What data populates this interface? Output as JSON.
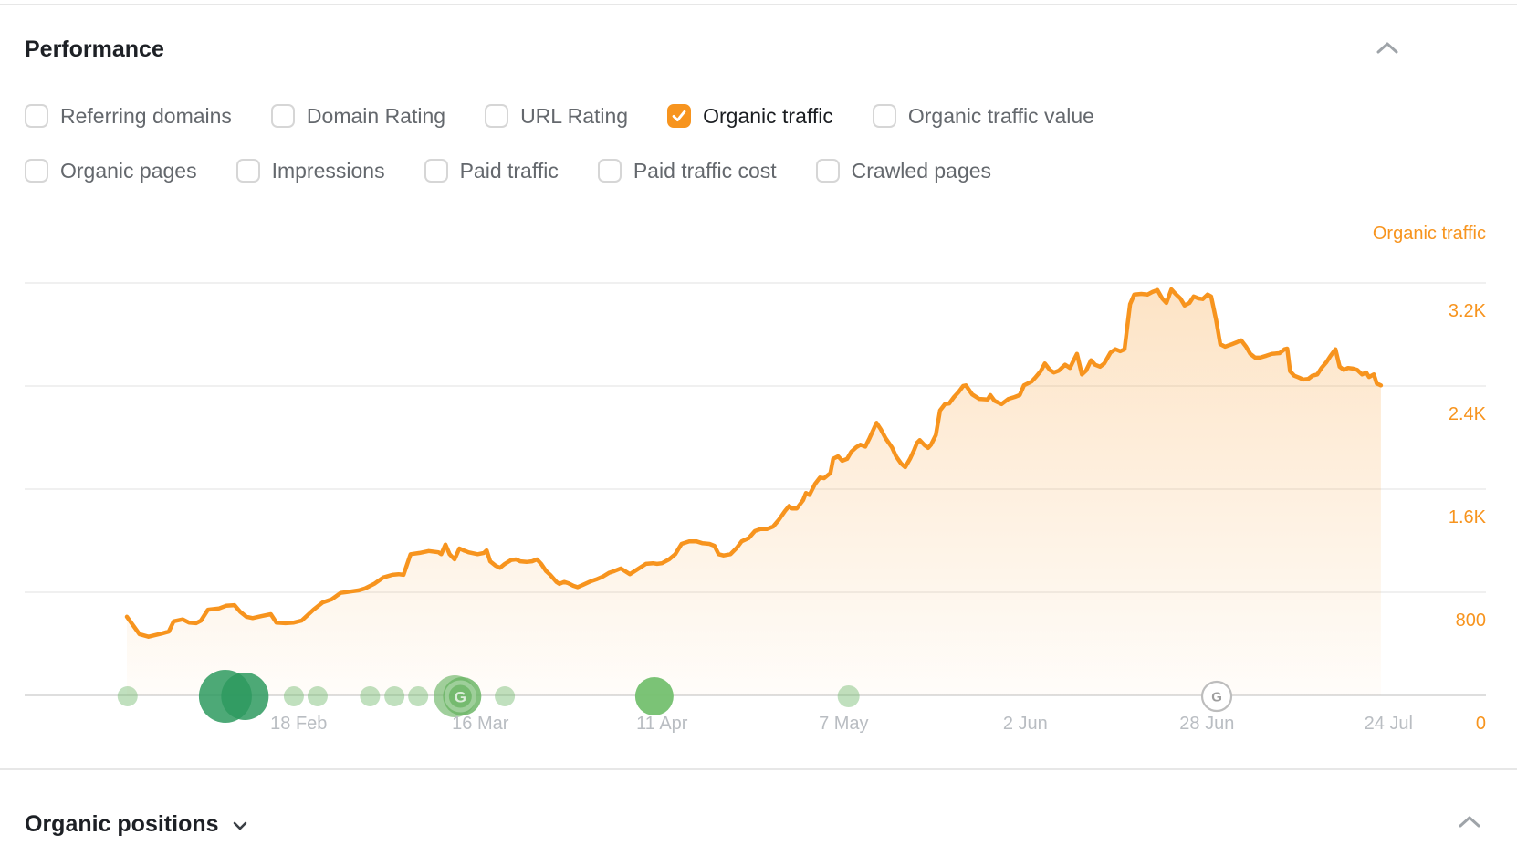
{
  "header": {
    "title": "Performance",
    "collapse_icon": "chevron-up"
  },
  "metric_toggles": {
    "row1": [
      {
        "label": "Referring domains",
        "checked": false
      },
      {
        "label": "Domain Rating",
        "checked": false
      },
      {
        "label": "URL Rating",
        "checked": false
      },
      {
        "label": "Organic traffic",
        "checked": true
      },
      {
        "label": "Organic traffic value",
        "checked": false
      }
    ],
    "row2": [
      {
        "label": "Organic pages",
        "checked": false
      },
      {
        "label": "Impressions",
        "checked": false
      },
      {
        "label": "Paid traffic",
        "checked": false
      },
      {
        "label": "Paid traffic cost",
        "checked": false
      },
      {
        "label": "Crawled pages",
        "checked": false
      }
    ]
  },
  "chart_data": {
    "type": "area",
    "title": "Organic traffic",
    "legend_position": "top-right",
    "grid": true,
    "ylim": [
      0,
      3600
    ],
    "y_ticks": [
      {
        "value": 3200,
        "label": "3.2K"
      },
      {
        "value": 2400,
        "label": "2.4K"
      },
      {
        "value": 1600,
        "label": "1.6K"
      },
      {
        "value": 800,
        "label": "800"
      },
      {
        "value": 0,
        "label": "0"
      }
    ],
    "x_ticks": [
      {
        "day": 24.6,
        "label": "18 Feb"
      },
      {
        "day": 50.6,
        "label": "16 Mar"
      },
      {
        "day": 76.6,
        "label": "11 Apr"
      },
      {
        "day": 102.6,
        "label": "7 May"
      },
      {
        "day": 128.6,
        "label": "2 Jun"
      },
      {
        "day": 154.6,
        "label": "28 Jun"
      },
      {
        "day": 180.6,
        "label": "24 Jul"
      }
    ],
    "colors": {
      "line": "#F7941E",
      "fill_top": "rgba(247,148,30,0.27)",
      "fill_bottom": "rgba(247,148,30,0.02)",
      "grid": "#ebebeb",
      "axis": "#dedede",
      "x_label": "#b9bdc2",
      "y_label": "#F7941E",
      "marker_light": "rgba(116,187,110,0.45)",
      "marker_dark": "rgba(46,154,95,0.85)",
      "marker_medium": "rgba(116,192,111,0.95)",
      "marker_google_green": "rgba(109,182,103,0.85)",
      "marker_outlined_border": "#bdbdbd",
      "marker_outlined_g": "#9e9e9e"
    },
    "markers": [
      {
        "day": 0.1,
        "r": 11,
        "kind": "light"
      },
      {
        "day": 14.1,
        "r": 29,
        "kind": "dark"
      },
      {
        "day": 16.9,
        "r": 26,
        "kind": "dark"
      },
      {
        "day": 23.9,
        "r": 11,
        "kind": "light"
      },
      {
        "day": 27.3,
        "r": 11,
        "kind": "light"
      },
      {
        "day": 34.8,
        "r": 11,
        "kind": "light"
      },
      {
        "day": 38.3,
        "r": 11,
        "kind": "light"
      },
      {
        "day": 41.7,
        "r": 11,
        "kind": "light"
      },
      {
        "day": 47.6,
        "r": 23,
        "kind": "google"
      },
      {
        "day": 54.1,
        "r": 11,
        "kind": "light"
      },
      {
        "day": 75.5,
        "r": 21,
        "kind": "medium"
      },
      {
        "day": 103.3,
        "r": 12,
        "kind": "light"
      },
      {
        "day": 156.0,
        "r": 16,
        "kind": "outlined"
      }
    ],
    "points": [
      [
        0,
        610
      ],
      [
        1.8,
        475
      ],
      [
        3.1,
        455
      ],
      [
        5,
        480
      ],
      [
        6,
        495
      ],
      [
        6.7,
        575
      ],
      [
        8,
        590
      ],
      [
        8.9,
        565
      ],
      [
        9.9,
        560
      ],
      [
        10.6,
        580
      ],
      [
        11.6,
        665
      ],
      [
        13.2,
        675
      ],
      [
        14.2,
        695
      ],
      [
        15.4,
        700
      ],
      [
        16.2,
        650
      ],
      [
        17.1,
        610
      ],
      [
        18,
        600
      ],
      [
        19.3,
        615
      ],
      [
        20.6,
        630
      ],
      [
        21.4,
        565
      ],
      [
        22.7,
        560
      ],
      [
        23.9,
        565
      ],
      [
        25,
        580
      ],
      [
        26.7,
        665
      ],
      [
        28,
        720
      ],
      [
        29.3,
        745
      ],
      [
        30.6,
        795
      ],
      [
        31.9,
        805
      ],
      [
        33.2,
        815
      ],
      [
        34.1,
        830
      ],
      [
        35.4,
        865
      ],
      [
        36.7,
        915
      ],
      [
        38,
        935
      ],
      [
        38.9,
        940
      ],
      [
        39.6,
        935
      ],
      [
        40.6,
        1095
      ],
      [
        41.9,
        1105
      ],
      [
        43.2,
        1120
      ],
      [
        44.6,
        1110
      ],
      [
        45,
        1095
      ],
      [
        45.6,
        1170
      ],
      [
        46.2,
        1095
      ],
      [
        46.9,
        1055
      ],
      [
        47.6,
        1140
      ],
      [
        48.2,
        1125
      ],
      [
        48.9,
        1110
      ],
      [
        50.2,
        1095
      ],
      [
        51.1,
        1105
      ],
      [
        51.5,
        1125
      ],
      [
        52,
        1040
      ],
      [
        52.8,
        1005
      ],
      [
        53.4,
        990
      ],
      [
        54.1,
        1020
      ],
      [
        55,
        1050
      ],
      [
        55.7,
        1055
      ],
      [
        56.3,
        1040
      ],
      [
        57.2,
        1035
      ],
      [
        58,
        1040
      ],
      [
        58.7,
        1055
      ],
      [
        59.3,
        1020
      ],
      [
        60,
        965
      ],
      [
        60.6,
        935
      ],
      [
        61.5,
        880
      ],
      [
        61.9,
        865
      ],
      [
        62.6,
        880
      ],
      [
        63.2,
        870
      ],
      [
        63.9,
        850
      ],
      [
        64.5,
        840
      ],
      [
        65.2,
        855
      ],
      [
        66.4,
        885
      ],
      [
        67.2,
        900
      ],
      [
        68.1,
        920
      ],
      [
        69,
        950
      ],
      [
        69.8,
        965
      ],
      [
        70.7,
        985
      ],
      [
        72,
        940
      ],
      [
        73,
        975
      ],
      [
        74.3,
        1020
      ],
      [
        75.3,
        1025
      ],
      [
        75.9,
        1020
      ],
      [
        76.6,
        1025
      ],
      [
        77.6,
        1055
      ],
      [
        78.5,
        1095
      ],
      [
        79.4,
        1175
      ],
      [
        80.5,
        1195
      ],
      [
        81.5,
        1195
      ],
      [
        82.4,
        1180
      ],
      [
        83.4,
        1175
      ],
      [
        84.1,
        1160
      ],
      [
        84.7,
        1095
      ],
      [
        85.4,
        1085
      ],
      [
        86.4,
        1095
      ],
      [
        87.3,
        1145
      ],
      [
        88,
        1195
      ],
      [
        89,
        1220
      ],
      [
        89.9,
        1275
      ],
      [
        90.7,
        1290
      ],
      [
        91.6,
        1290
      ],
      [
        92.5,
        1310
      ],
      [
        93.3,
        1360
      ],
      [
        94.2,
        1430
      ],
      [
        94.8,
        1470
      ],
      [
        95.2,
        1450
      ],
      [
        95.9,
        1450
      ],
      [
        96.8,
        1515
      ],
      [
        97.2,
        1570
      ],
      [
        97.7,
        1555
      ],
      [
        98.5,
        1640
      ],
      [
        99.2,
        1690
      ],
      [
        99.8,
        1685
      ],
      [
        100.7,
        1725
      ],
      [
        101.1,
        1835
      ],
      [
        101.8,
        1855
      ],
      [
        102.4,
        1820
      ],
      [
        103.1,
        1835
      ],
      [
        103.7,
        1890
      ],
      [
        104.4,
        1925
      ],
      [
        105,
        1945
      ],
      [
        105.7,
        1930
      ],
      [
        106.3,
        1995
      ],
      [
        107.3,
        2115
      ],
      [
        107.9,
        2065
      ],
      [
        108.6,
        1995
      ],
      [
        109.5,
        1925
      ],
      [
        110.1,
        1855
      ],
      [
        110.8,
        1800
      ],
      [
        111.4,
        1770
      ],
      [
        112.1,
        1835
      ],
      [
        112.7,
        1905
      ],
      [
        113.1,
        1960
      ],
      [
        113.5,
        1980
      ],
      [
        114.2,
        1940
      ],
      [
        114.7,
        1920
      ],
      [
        115.1,
        1945
      ],
      [
        115.8,
        2020
      ],
      [
        116.4,
        2210
      ],
      [
        117.1,
        2260
      ],
      [
        117.7,
        2265
      ],
      [
        118.4,
        2315
      ],
      [
        119,
        2350
      ],
      [
        119.7,
        2400
      ],
      [
        120.1,
        2405
      ],
      [
        121,
        2335
      ],
      [
        122,
        2300
      ],
      [
        123.2,
        2295
      ],
      [
        123.6,
        2330
      ],
      [
        124.2,
        2285
      ],
      [
        125.2,
        2260
      ],
      [
        126.2,
        2300
      ],
      [
        127.1,
        2315
      ],
      [
        127.8,
        2330
      ],
      [
        128.4,
        2405
      ],
      [
        129.5,
        2435
      ],
      [
        130.1,
        2470
      ],
      [
        130.8,
        2515
      ],
      [
        131.4,
        2575
      ],
      [
        132.1,
        2525
      ],
      [
        132.7,
        2505
      ],
      [
        133.4,
        2520
      ],
      [
        134.3,
        2565
      ],
      [
        135,
        2540
      ],
      [
        135.3,
        2575
      ],
      [
        136,
        2650
      ],
      [
        136.7,
        2490
      ],
      [
        137.3,
        2520
      ],
      [
        138,
        2600
      ],
      [
        138.6,
        2565
      ],
      [
        139.3,
        2550
      ],
      [
        139.9,
        2575
      ],
      [
        140.8,
        2660
      ],
      [
        141.5,
        2685
      ],
      [
        142.2,
        2670
      ],
      [
        142.8,
        2685
      ],
      [
        143.2,
        2865
      ],
      [
        143.6,
        3035
      ],
      [
        144.2,
        3110
      ],
      [
        145.2,
        3115
      ],
      [
        146.1,
        3110
      ],
      [
        146.8,
        3130
      ],
      [
        147.5,
        3145
      ],
      [
        148.2,
        3080
      ],
      [
        148.8,
        3045
      ],
      [
        149.5,
        3150
      ],
      [
        150.1,
        3115
      ],
      [
        150.8,
        3080
      ],
      [
        151.4,
        3025
      ],
      [
        152.1,
        3045
      ],
      [
        152.7,
        3095
      ],
      [
        153.4,
        3080
      ],
      [
        154,
        3075
      ],
      [
        154.7,
        3110
      ],
      [
        155.2,
        3095
      ],
      [
        155.9,
        2915
      ],
      [
        156.5,
        2725
      ],
      [
        157.2,
        2705
      ],
      [
        158.2,
        2725
      ],
      [
        158.9,
        2740
      ],
      [
        159.5,
        2755
      ],
      [
        160.2,
        2705
      ],
      [
        160.8,
        2650
      ],
      [
        161.5,
        2620
      ],
      [
        162.2,
        2620
      ],
      [
        163.1,
        2635
      ],
      [
        163.9,
        2650
      ],
      [
        165,
        2655
      ],
      [
        165.7,
        2685
      ],
      [
        166.1,
        2690
      ],
      [
        166.5,
        2515
      ],
      [
        167.1,
        2480
      ],
      [
        167.8,
        2465
      ],
      [
        168.4,
        2450
      ],
      [
        169.1,
        2455
      ],
      [
        169.7,
        2480
      ],
      [
        170.4,
        2490
      ],
      [
        171,
        2540
      ],
      [
        171.7,
        2585
      ],
      [
        172.3,
        2635
      ],
      [
        173,
        2685
      ],
      [
        173.6,
        2550
      ],
      [
        174.2,
        2525
      ],
      [
        174.8,
        2540
      ],
      [
        175.5,
        2535
      ],
      [
        176.1,
        2525
      ],
      [
        176.8,
        2490
      ],
      [
        177.4,
        2505
      ],
      [
        177.8,
        2470
      ],
      [
        178.5,
        2490
      ],
      [
        178.9,
        2420
      ],
      [
        179.5,
        2405
      ]
    ]
  },
  "footer": {
    "title": "Organic positions",
    "collapse_icon": "chevron-up",
    "title_caret": "chevron-down"
  }
}
